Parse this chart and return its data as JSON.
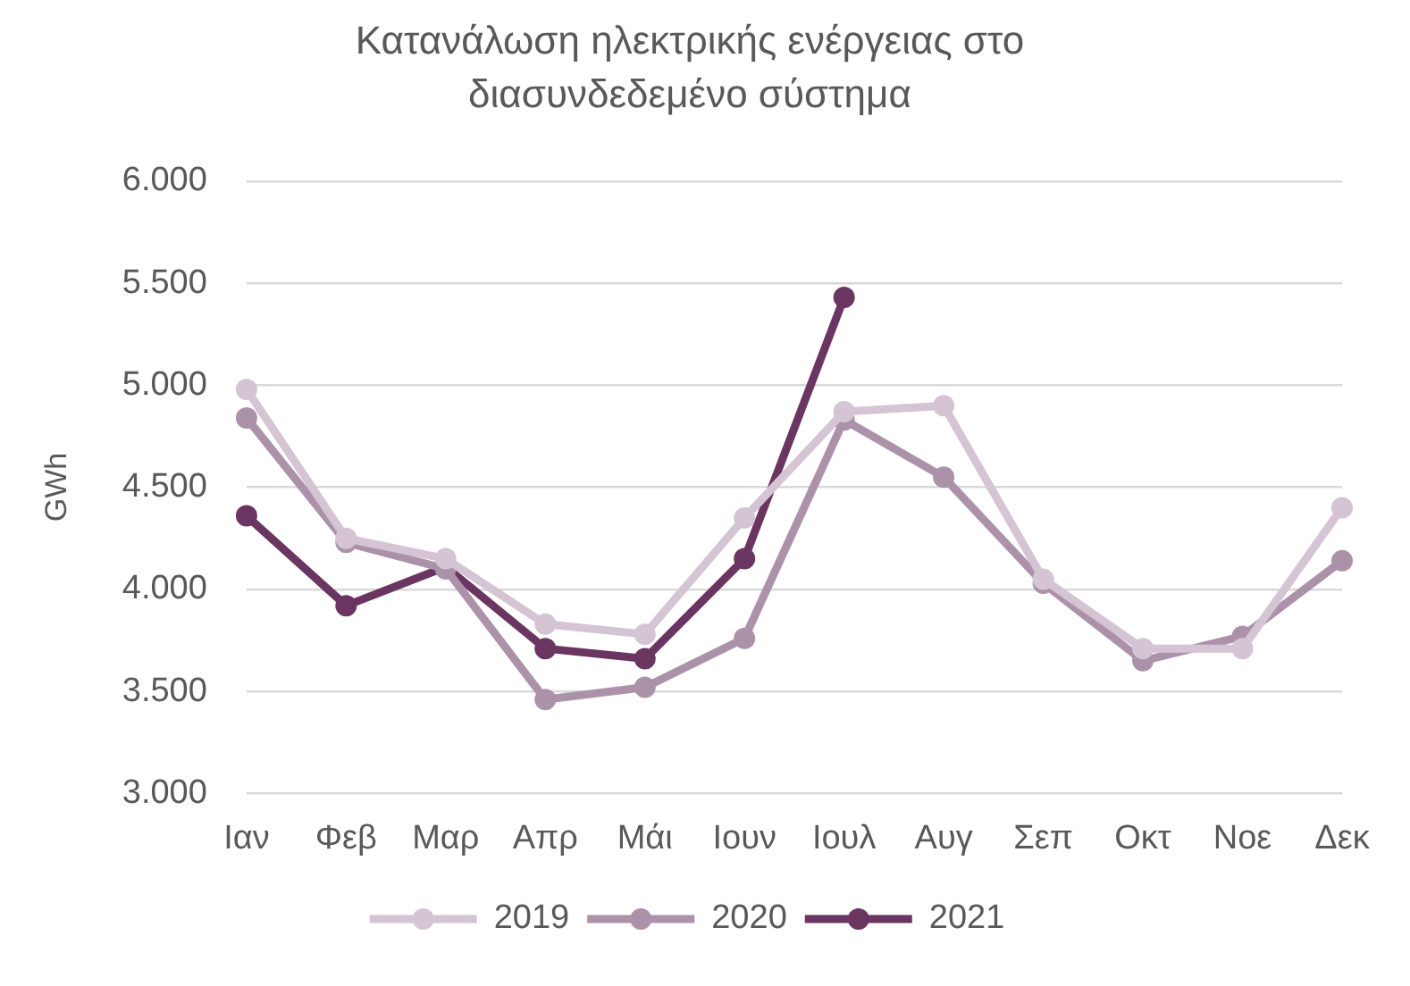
{
  "chart_data": {
    "type": "line",
    "title": "Κατανάλωση ηλεκτρικής ενέργειας στο διασυνδεδεμένο σύστημα",
    "ylabel": "GWh",
    "categories": [
      "Ιαν",
      "Φεβ",
      "Μαρ",
      "Απρ",
      "Μάι",
      "Ιουν",
      "Ιουλ",
      "Αυγ",
      "Σεπ",
      "Οκτ",
      "Νοε",
      "Δεκ"
    ],
    "series": [
      {
        "name": "2019",
        "color": "#d5c4d3",
        "values": [
          4980,
          4250,
          4150,
          3830,
          3780,
          4350,
          4870,
          4900,
          4050,
          3710,
          3710,
          4400
        ]
      },
      {
        "name": "2020",
        "color": "#ab92a9",
        "values": [
          4840,
          4230,
          4100,
          3460,
          3520,
          3760,
          4830,
          4550,
          4030,
          3650,
          3770,
          4140
        ]
      },
      {
        "name": "2021",
        "color": "#6a3560",
        "values": [
          4360,
          3920,
          4110,
          3710,
          3660,
          4150,
          5430,
          null,
          null,
          null,
          null,
          null
        ]
      }
    ],
    "ylim": [
      3000,
      6000
    ],
    "yticks": [
      {
        "value": 3000,
        "label": "3.000"
      },
      {
        "value": 3500,
        "label": "3.500"
      },
      {
        "value": 4000,
        "label": "4.000"
      },
      {
        "value": 4500,
        "label": "4.500"
      },
      {
        "value": 5000,
        "label": "5.000"
      },
      {
        "value": 5500,
        "label": "5.500"
      },
      {
        "value": 6000,
        "label": "6.000"
      }
    ],
    "grid": "y",
    "legend": "bottom",
    "marker": "circle",
    "line_style": "solid"
  }
}
